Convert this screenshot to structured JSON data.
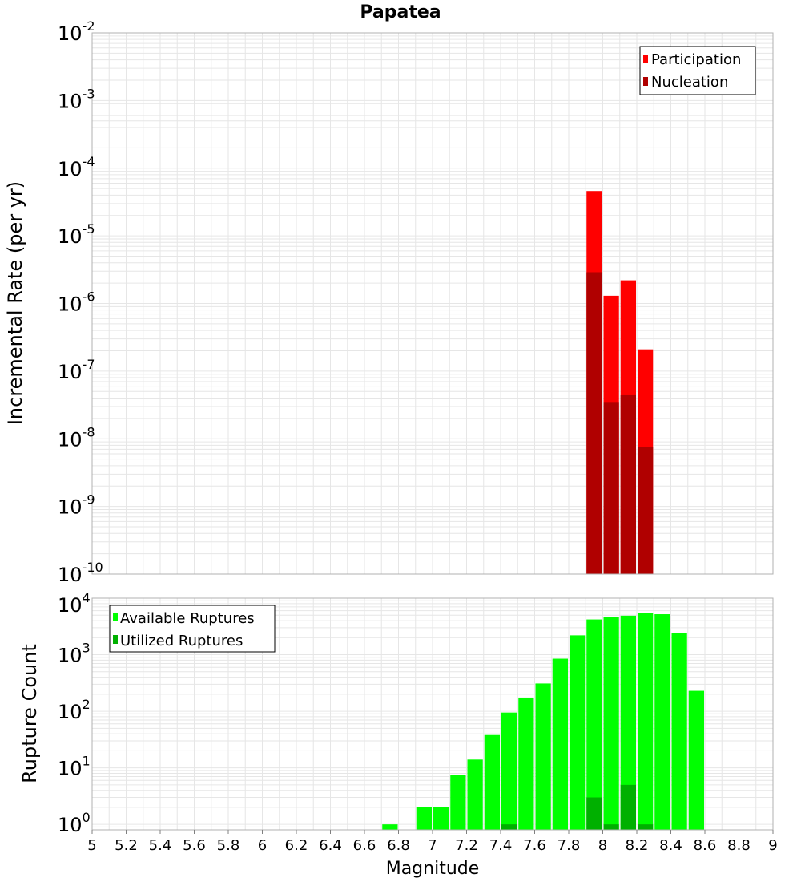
{
  "colors": {
    "participation": "#ff0000",
    "nucleation": "#b00000",
    "available": "#00ff00",
    "utilized": "#00b000",
    "grid": "#e6e6e6",
    "frame": "#b0b0b0"
  },
  "chart_data": [
    {
      "type": "bar",
      "title": "Papatea",
      "xlabel": "",
      "ylabel": "Incremental Rate (per yr)",
      "yscale": "log",
      "ylim": [
        1e-10,
        0.01
      ],
      "xlim": [
        5,
        9
      ],
      "grid": true,
      "legend_position": "top-right",
      "bin_width": 0.1,
      "y_ticks": [
        {
          "base": "10",
          "exp": "-2"
        },
        {
          "base": "10",
          "exp": "-3"
        },
        {
          "base": "10",
          "exp": "-4"
        },
        {
          "base": "10",
          "exp": "-5"
        },
        {
          "base": "10",
          "exp": "-6"
        },
        {
          "base": "10",
          "exp": "-7"
        },
        {
          "base": "10",
          "exp": "-8"
        },
        {
          "base": "10",
          "exp": "-9"
        },
        {
          "base": "10",
          "exp": "-10"
        }
      ],
      "series": [
        {
          "name": "Participation",
          "color": "#ff0000",
          "x": [
            7.95,
            8.05,
            8.15,
            8.25
          ],
          "values": [
            4.6e-05,
            1.3e-06,
            2.2e-06,
            2.1e-07
          ]
        },
        {
          "name": "Nucleation",
          "color": "#b00000",
          "x": [
            7.95,
            8.05,
            8.15,
            8.25
          ],
          "values": [
            2.9e-06,
            3.5e-08,
            4.4e-08,
            7.5e-09
          ]
        }
      ]
    },
    {
      "type": "bar",
      "title": "",
      "xlabel": "Magnitude",
      "ylabel": "Rupture Count",
      "yscale": "log",
      "ylim": [
        0.8,
        10000.0
      ],
      "xlim": [
        5,
        9
      ],
      "grid": true,
      "legend_position": "top-left",
      "bin_width": 0.1,
      "x_ticks": [
        "5",
        "5.2",
        "5.4",
        "5.6",
        "5.8",
        "6",
        "6.2",
        "6.4",
        "6.6",
        "6.8",
        "7",
        "7.2",
        "7.4",
        "7.6",
        "7.8",
        "8",
        "8.2",
        "8.4",
        "8.6",
        "8.8",
        "9"
      ],
      "y_ticks": [
        {
          "base": "10",
          "exp": "4"
        },
        {
          "base": "10",
          "exp": "3"
        },
        {
          "base": "10",
          "exp": "2"
        },
        {
          "base": "10",
          "exp": "1"
        },
        {
          "base": "10",
          "exp": "0"
        }
      ],
      "series": [
        {
          "name": "Available Ruptures",
          "color": "#00ff00",
          "x": [
            6.75,
            6.95,
            7.05,
            7.15,
            7.25,
            7.35,
            7.45,
            7.55,
            7.65,
            7.75,
            7.85,
            7.95,
            8.05,
            8.15,
            8.25,
            8.35,
            8.45,
            8.55
          ],
          "values": [
            1,
            2,
            2,
            7.5,
            14,
            38,
            95,
            175,
            310,
            850,
            2200,
            4200,
            4700,
            4900,
            5500,
            5200,
            2400,
            230
          ]
        },
        {
          "name": "Utilized Ruptures",
          "color": "#00b000",
          "x": [
            7.45,
            7.95,
            8.05,
            8.15,
            8.25
          ],
          "values": [
            1,
            3,
            1,
            5,
            1
          ]
        }
      ]
    }
  ]
}
